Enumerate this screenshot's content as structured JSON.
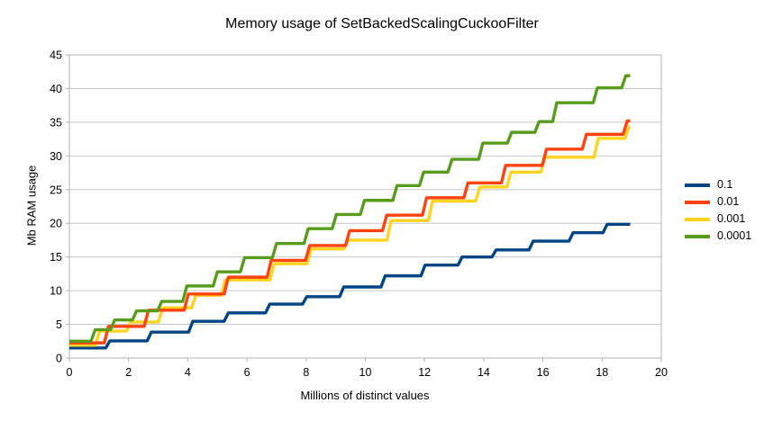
{
  "chart_data": {
    "type": "line",
    "line_style": "step",
    "title": "Memory usage of SetBackedScalingCuckooFilter",
    "xlabel": "Millions of distinct values",
    "ylabel": "Mb RAM usage",
    "xlim": [
      0,
      20
    ],
    "ylim": [
      0,
      45
    ],
    "x_ticks": [
      0,
      2,
      4,
      6,
      8,
      10,
      12,
      14,
      16,
      18,
      20
    ],
    "y_ticks": [
      0,
      5,
      10,
      15,
      20,
      25,
      30,
      35,
      40,
      45
    ],
    "grid": "horizontal-major",
    "grid_color": "#c6c6c6",
    "frame_color": "#b3b3b3",
    "text_color": "#000000",
    "legend_position": "right",
    "draw_order": [
      0,
      2,
      1,
      3
    ],
    "series": [
      {
        "name": "0.1",
        "color": "#004586",
        "y0": 1.5,
        "x_end": 18.95,
        "steps": [
          [
            1.3,
            2.55
          ],
          [
            2.7,
            3.85
          ],
          [
            4.1,
            5.45
          ],
          [
            5.3,
            6.7
          ],
          [
            6.7,
            8.0
          ],
          [
            7.95,
            9.1
          ],
          [
            9.2,
            10.55
          ],
          [
            10.6,
            12.2
          ],
          [
            11.95,
            13.8
          ],
          [
            13.2,
            15.0
          ],
          [
            14.35,
            16.05
          ],
          [
            15.6,
            17.35
          ],
          [
            16.95,
            18.6
          ],
          [
            18.1,
            19.85
          ]
        ]
      },
      {
        "name": "0.01",
        "color": "#ff420e",
        "y0": 2.25,
        "x_end": 18.95,
        "steps": [
          [
            1.25,
            4.7
          ],
          [
            2.6,
            7.1
          ],
          [
            3.95,
            9.5
          ],
          [
            5.3,
            12.0
          ],
          [
            6.75,
            14.5
          ],
          [
            8.05,
            16.7
          ],
          [
            9.4,
            18.9
          ],
          [
            10.65,
            21.2
          ],
          [
            12.0,
            23.8
          ],
          [
            13.4,
            26.0
          ],
          [
            14.67,
            28.6
          ],
          [
            16.05,
            31.0
          ],
          [
            17.4,
            33.2
          ],
          [
            18.78,
            35.2
          ]
        ]
      },
      {
        "name": "0.001",
        "color": "#ffd320",
        "y0": 1.9,
        "x_end": 18.95,
        "steps": [
          [
            0.95,
            4.0
          ],
          [
            2.0,
            5.35
          ],
          [
            3.08,
            7.45
          ],
          [
            4.2,
            9.3
          ],
          [
            5.2,
            11.6
          ],
          [
            6.85,
            14.0
          ],
          [
            8.1,
            16.2
          ],
          [
            9.35,
            17.5
          ],
          [
            10.8,
            20.4
          ],
          [
            12.2,
            23.3
          ],
          [
            13.8,
            25.4
          ],
          [
            14.85,
            27.6
          ],
          [
            16.0,
            29.8
          ],
          [
            17.8,
            32.6
          ],
          [
            18.84,
            34.3
          ]
        ]
      },
      {
        "name": "0.0001",
        "color": "#579d1c",
        "y0": 2.5,
        "x_end": 18.95,
        "steps": [
          [
            0.8,
            4.2
          ],
          [
            1.46,
            5.65
          ],
          [
            2.2,
            7.0
          ],
          [
            3.05,
            8.4
          ],
          [
            3.9,
            10.7
          ],
          [
            4.93,
            12.8
          ],
          [
            5.85,
            14.9
          ],
          [
            6.93,
            17.0
          ],
          [
            8.0,
            19.2
          ],
          [
            8.95,
            21.3
          ],
          [
            9.9,
            23.4
          ],
          [
            11.0,
            25.6
          ],
          [
            11.9,
            27.6
          ],
          [
            12.86,
            29.5
          ],
          [
            13.9,
            31.9
          ],
          [
            14.87,
            33.5
          ],
          [
            15.8,
            35.1
          ],
          [
            16.4,
            37.9
          ],
          [
            17.77,
            40.1
          ],
          [
            18.73,
            41.9
          ]
        ]
      }
    ]
  }
}
